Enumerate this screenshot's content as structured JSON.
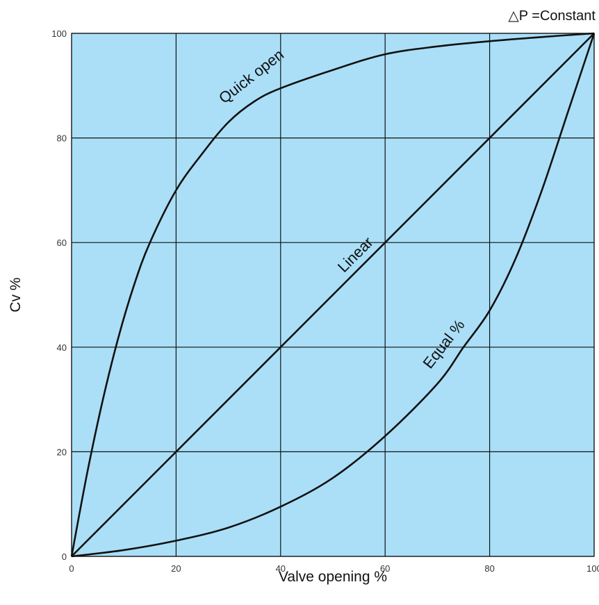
{
  "chart_data": {
    "type": "line",
    "title": "",
    "note": "△P =Constant",
    "xlabel": "Valve opening %",
    "ylabel": "Cv %",
    "xlim": [
      0,
      100
    ],
    "ylim": [
      0,
      100
    ],
    "xticks": [
      0,
      20,
      40,
      60,
      80,
      100
    ],
    "yticks": [
      0,
      20,
      40,
      60,
      80,
      100
    ],
    "grid": true,
    "colors": {
      "plot_background": "#aadff7",
      "line": "#111111",
      "grid": "#111111"
    },
    "series": [
      {
        "name": "Quick open",
        "x": [
          0,
          3,
          6,
          9,
          12,
          15,
          20,
          25,
          30,
          35,
          40,
          50,
          60,
          70,
          80,
          90,
          100
        ],
        "y": [
          0,
          16,
          30,
          42,
          52,
          60,
          70,
          77,
          83,
          87,
          89.5,
          93,
          96,
          97.5,
          98.5,
          99.3,
          100
        ]
      },
      {
        "name": "Linear",
        "x": [
          0,
          100
        ],
        "y": [
          0,
          100
        ]
      },
      {
        "name": "Equal %",
        "x": [
          0,
          10,
          20,
          30,
          40,
          50,
          60,
          70,
          75,
          80,
          85,
          90,
          95,
          100
        ],
        "y": [
          0,
          1.2,
          3,
          5.5,
          9.5,
          15,
          23,
          33,
          40,
          47,
          57,
          70,
          85,
          100
        ]
      }
    ],
    "annotations": [
      {
        "text": "Quick open",
        "x": 35,
        "y": 91,
        "rotate": -38
      },
      {
        "text": "Linear",
        "x": 55,
        "y": 57,
        "rotate": -45
      },
      {
        "text": "Equal %",
        "x": 72,
        "y": 40,
        "rotate": -52
      }
    ]
  }
}
